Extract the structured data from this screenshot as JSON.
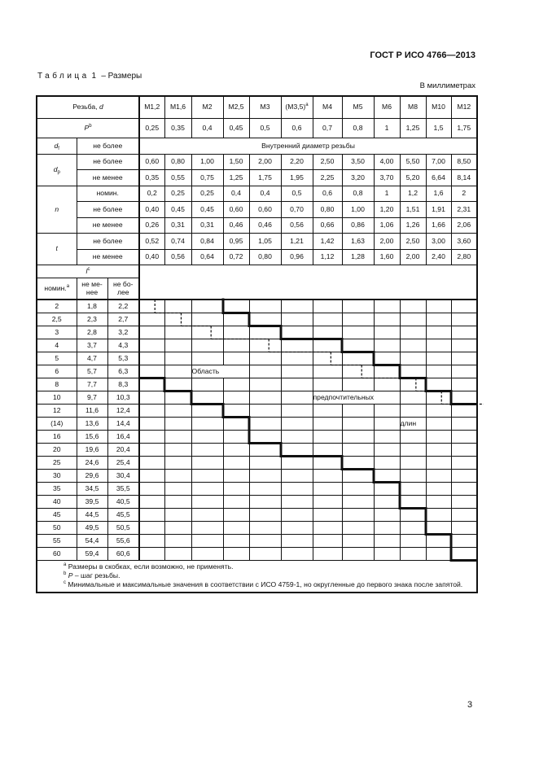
{
  "header": {
    "standard": "ГОСТ Р ИСО 4766—2013"
  },
  "caption": {
    "word": "Таблица",
    "number": "1",
    "title": "– Размеры"
  },
  "units": "В миллиметрах",
  "table": {
    "thread_label": "Резьба,",
    "thread_symbol": "d",
    "threads": [
      {
        "name": "M1,2"
      },
      {
        "name": "M1,6"
      },
      {
        "name": "M2"
      },
      {
        "name": "M2,5"
      },
      {
        "name": "M3"
      },
      {
        "name": "(M3,5)",
        "note": "a"
      },
      {
        "name": "M4"
      },
      {
        "name": "M5"
      },
      {
        "name": "M6"
      },
      {
        "name": "M8"
      },
      {
        "name": "M10"
      },
      {
        "name": "M12"
      }
    ],
    "pitch": {
      "symbol": "P",
      "note": "b",
      "values": [
        "0,25",
        "0,35",
        "0,4",
        "0,45",
        "0,5",
        "0,6",
        "0,7",
        "0,8",
        "1",
        "1,25",
        "1,5",
        "1,75"
      ]
    },
    "df": {
      "symbol": "d",
      "sub": "f",
      "label": "не более",
      "text": "Внутренний диаметр резьбы"
    },
    "dp": {
      "symbol": "d",
      "sub": "p",
      "rows": [
        {
          "label": "не более",
          "values": [
            "0,60",
            "0,80",
            "1,00",
            "1,50",
            "2,00",
            "2,20",
            "2,50",
            "3,50",
            "4,00",
            "5,50",
            "7,00",
            "8,50"
          ]
        },
        {
          "label": "не менее",
          "values": [
            "0,35",
            "0,55",
            "0,75",
            "1,25",
            "1,75",
            "1,95",
            "2,25",
            "3,20",
            "3,70",
            "5,20",
            "6,64",
            "8,14"
          ]
        }
      ]
    },
    "n": {
      "symbol": "n",
      "rows": [
        {
          "label": "номин.",
          "values": [
            "0,2",
            "0,25",
            "0,25",
            "0,4",
            "0,4",
            "0,5",
            "0,6",
            "0,8",
            "1",
            "1,2",
            "1,6",
            "2"
          ]
        },
        {
          "label": "не более",
          "values": [
            "0,40",
            "0,45",
            "0,45",
            "0,60",
            "0,60",
            "0,70",
            "0,80",
            "1,00",
            "1,20",
            "1,51",
            "1,91",
            "2,31"
          ]
        },
        {
          "label": "не менее",
          "values": [
            "0,26",
            "0,31",
            "0,31",
            "0,46",
            "0,46",
            "0,56",
            "0,66",
            "0,86",
            "1,06",
            "1,26",
            "1,66",
            "2,06"
          ]
        }
      ]
    },
    "t": {
      "symbol": "t",
      "rows": [
        {
          "label": "не более",
          "values": [
            "0,52",
            "0,74",
            "0,84",
            "0,95",
            "1,05",
            "1,21",
            "1,42",
            "1,63",
            "2,00",
            "2,50",
            "3,00",
            "3,60"
          ]
        },
        {
          "label": "не менее",
          "values": [
            "0,40",
            "0,56",
            "0,64",
            "0,72",
            "0,80",
            "0,96",
            "1,12",
            "1,28",
            "1,60",
            "2,00",
            "2,40",
            "2,80"
          ]
        }
      ]
    },
    "l": {
      "symbol": "l",
      "note": "c",
      "col_nom": "номин.",
      "col_nom_note": "a",
      "col_min": "не ме-нее",
      "col_max": "не бо-лее"
    },
    "lengths": [
      {
        "nom": "2",
        "min": "1,8",
        "max": "2,2"
      },
      {
        "nom": "2,5",
        "min": "2,3",
        "max": "2,7"
      },
      {
        "nom": "3",
        "min": "2,8",
        "max": "3,2"
      },
      {
        "nom": "4",
        "min": "3,7",
        "max": "4,3"
      },
      {
        "nom": "5",
        "min": "4,7",
        "max": "5,3"
      },
      {
        "nom": "6",
        "min": "5,7",
        "max": "6,3"
      },
      {
        "nom": "8",
        "min": "7,7",
        "max": "8,3"
      },
      {
        "nom": "10",
        "min": "9,7",
        "max": "10,3"
      },
      {
        "nom": "12",
        "min": "11,6",
        "max": "12,4"
      },
      {
        "nom": "(14)",
        "min": "13,6",
        "max": "14,4"
      },
      {
        "nom": "16",
        "min": "15,6",
        "max": "16,4"
      },
      {
        "nom": "20",
        "min": "19,6",
        "max": "20,4"
      },
      {
        "nom": "25",
        "min": "24,6",
        "max": "25,4"
      },
      {
        "nom": "30",
        "min": "29,6",
        "max": "30,4"
      },
      {
        "nom": "35",
        "min": "34,5",
        "max": "35,5"
      },
      {
        "nom": "40",
        "min": "39,5",
        "max": "40,5"
      },
      {
        "nom": "45",
        "min": "44,5",
        "max": "45,5"
      },
      {
        "nom": "50",
        "min": "49,5",
        "max": "50,5"
      },
      {
        "nom": "55",
        "min": "54,4",
        "max": "55,6"
      },
      {
        "nom": "60",
        "min": "59,4",
        "max": "60,6"
      }
    ],
    "length_ranges": [
      {
        "thread": "M1,2",
        "from": "2",
        "to": "6",
        "preferred_from": "2,5"
      },
      {
        "thread": "M1,6",
        "from": "2",
        "to": "8",
        "preferred_from": "3"
      },
      {
        "thread": "M2",
        "from": "2",
        "to": "10",
        "preferred_from": "4"
      },
      {
        "thread": "M2,5",
        "from": "2,5",
        "to": "12",
        "preferred_from": "4"
      },
      {
        "thread": "M3",
        "from": "3",
        "to": "16",
        "preferred_from": "5"
      },
      {
        "thread": "(M3,5)",
        "from": "4",
        "to": "20",
        "preferred_from": "5"
      },
      {
        "thread": "M4",
        "from": "4",
        "to": "20",
        "preferred_from": "6"
      },
      {
        "thread": "M5",
        "from": "5",
        "to": "25",
        "preferred_from": "8"
      },
      {
        "thread": "M6",
        "from": "6",
        "to": "30",
        "preferred_from": "8"
      },
      {
        "thread": "M8",
        "from": "8",
        "to": "40",
        "preferred_from": "10"
      },
      {
        "thread": "M10",
        "from": "10",
        "to": "50",
        "preferred_from": "12"
      },
      {
        "thread": "M12",
        "from": "12",
        "to": "60",
        "preferred_from": "12"
      }
    ],
    "region_labels": [
      {
        "text": "Область",
        "row": "6",
        "col_from": 2,
        "span": 2
      },
      {
        "text": "предпочтительных",
        "row": "10",
        "col_from": 6,
        "span": 3
      },
      {
        "text": "длин",
        "row": "(14)",
        "col_from": 9,
        "span": 1
      }
    ],
    "footnotes": [
      {
        "mark": "a",
        "text": "Размеры в скобках, если возможно, не применять."
      },
      {
        "mark": "b",
        "symbol": "P",
        "text": "– шаг резьбы."
      },
      {
        "mark": "c",
        "text": "Минимальные и максимальные значения в соответствии с ИСО 4759-1, но округленные до первого знака после запятой."
      }
    ]
  },
  "page_number": "3",
  "colors": {
    "ink": "#111111",
    "background": "#ffffff"
  }
}
